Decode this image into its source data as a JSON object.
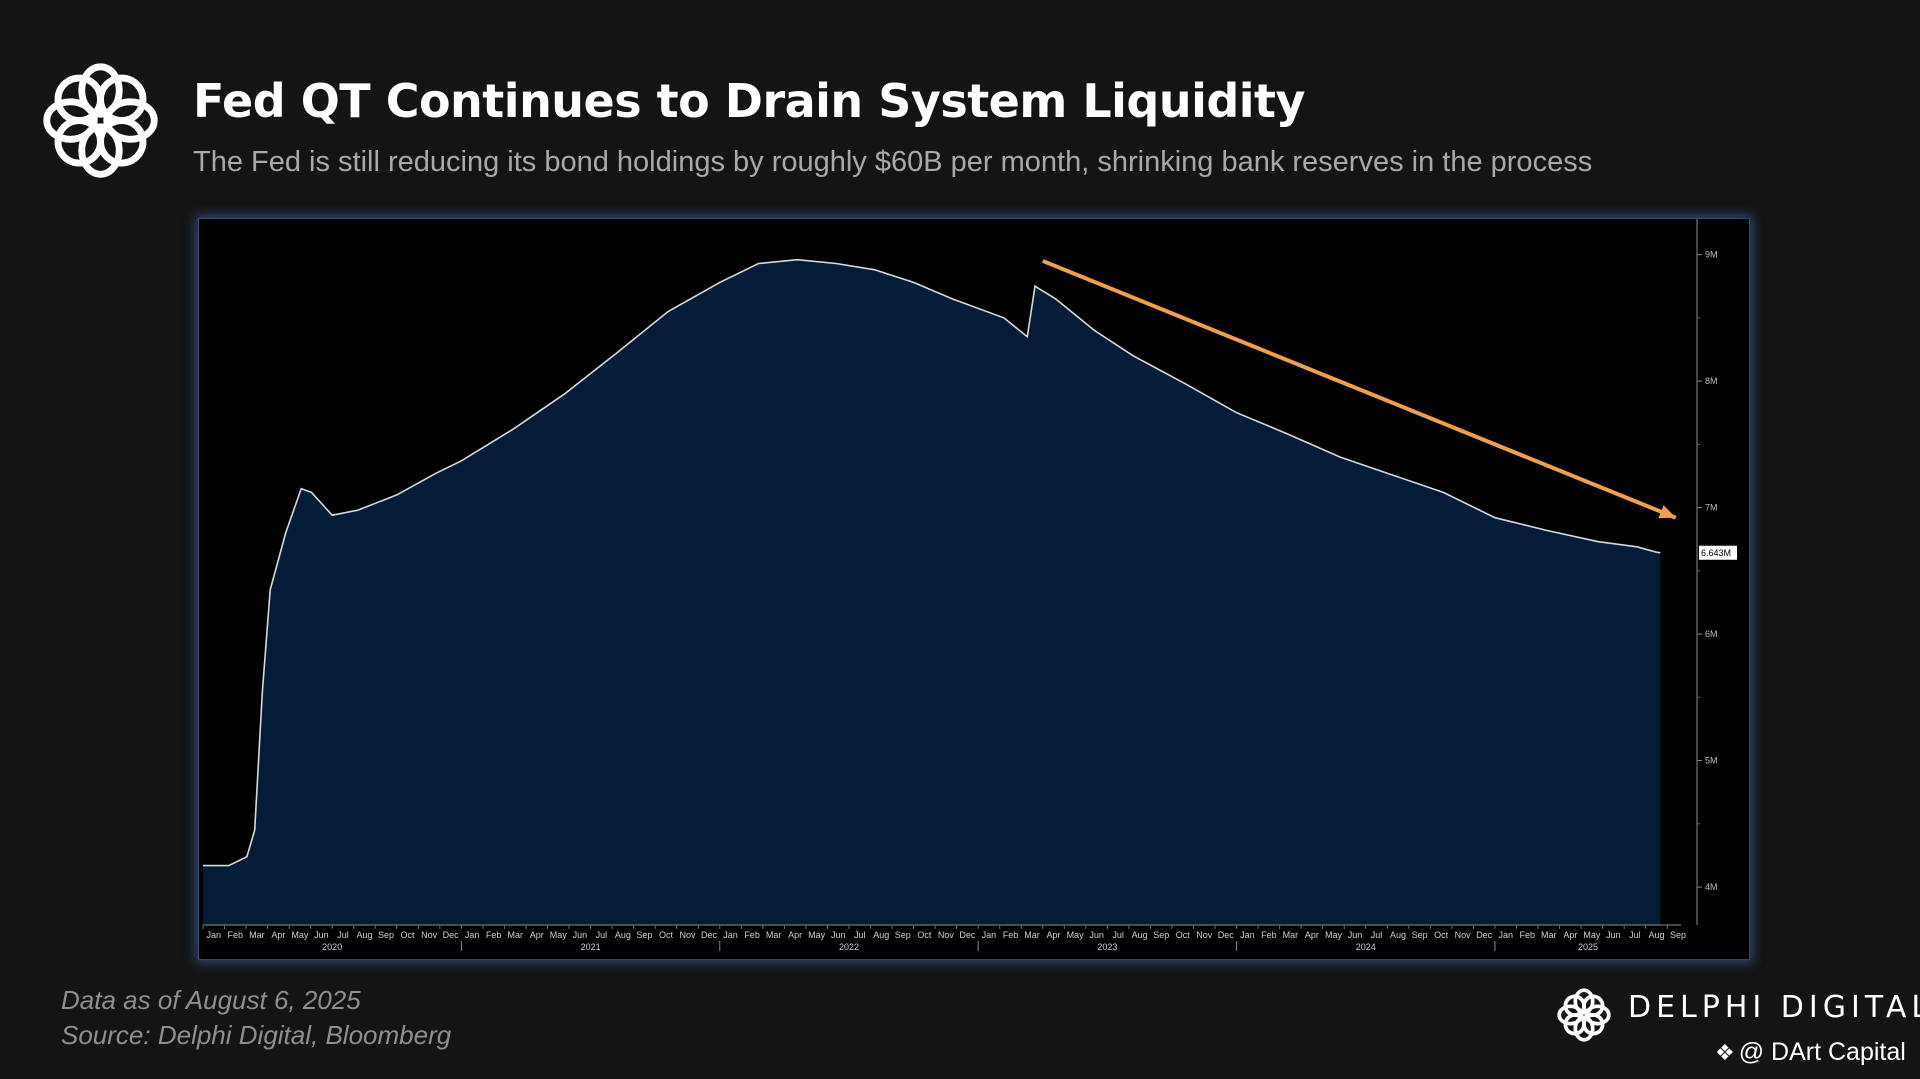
{
  "header": {
    "title": "Fed QT Continues to Drain System Liquidity",
    "subtitle": "The Fed is still reducing its bond holdings by roughly $60B per month, shrinking bank reserves in the process"
  },
  "footer": {
    "data_note": "Data as of August 6, 2025",
    "source": "Source: Delphi Digital, Bloomberg",
    "brand": "DELPHI DIGITAL",
    "watermark": "@ DArt Capital"
  },
  "colors": {
    "background": "#141414",
    "area_fill": "#051c38",
    "line": "#d9d9d9",
    "trend_arrow": "#f0a04a"
  },
  "chart_data": {
    "type": "area",
    "title": "",
    "xlabel": "",
    "ylabel": "",
    "ylim": [
      3.7,
      9.25
    ],
    "y_ticks": [
      4,
      5,
      6,
      7,
      8,
      9
    ],
    "y_tick_labels": [
      "4M",
      "5M",
      "6M",
      "7M",
      "8M",
      "9M"
    ],
    "x_range": [
      2020.0,
      2025.72
    ],
    "x_month_labels": [
      "Jan",
      "Feb",
      "Mar",
      "Apr",
      "May",
      "Jun",
      "Jul",
      "Aug",
      "Sep",
      "Oct",
      "Nov",
      "Dec"
    ],
    "x_year_labels": [
      "2020",
      "2021",
      "2022",
      "2023",
      "2024",
      "2025"
    ],
    "last_value_label": "6.643M",
    "series": [
      {
        "values_in_millions": [
          [
            2020.0,
            4.17
          ],
          [
            2020.1,
            4.17
          ],
          [
            2020.17,
            4.24
          ],
          [
            2020.2,
            4.45
          ],
          [
            2020.23,
            5.55
          ],
          [
            2020.26,
            6.35
          ],
          [
            2020.32,
            6.8
          ],
          [
            2020.38,
            7.15
          ],
          [
            2020.42,
            7.12
          ],
          [
            2020.5,
            6.94
          ],
          [
            2020.6,
            6.98
          ],
          [
            2020.75,
            7.1
          ],
          [
            2020.9,
            7.27
          ],
          [
            2021.0,
            7.37
          ],
          [
            2021.2,
            7.62
          ],
          [
            2021.4,
            7.9
          ],
          [
            2021.6,
            8.22
          ],
          [
            2021.8,
            8.55
          ],
          [
            2022.0,
            8.78
          ],
          [
            2022.15,
            8.93
          ],
          [
            2022.3,
            8.96
          ],
          [
            2022.45,
            8.93
          ],
          [
            2022.6,
            8.88
          ],
          [
            2022.75,
            8.78
          ],
          [
            2022.9,
            8.65
          ],
          [
            2023.1,
            8.5
          ],
          [
            2023.19,
            8.35
          ],
          [
            2023.22,
            8.75
          ],
          [
            2023.3,
            8.65
          ],
          [
            2023.45,
            8.4
          ],
          [
            2023.6,
            8.2
          ],
          [
            2023.8,
            7.98
          ],
          [
            2024.0,
            7.75
          ],
          [
            2024.2,
            7.58
          ],
          [
            2024.4,
            7.4
          ],
          [
            2024.6,
            7.26
          ],
          [
            2024.8,
            7.12
          ],
          [
            2025.0,
            6.92
          ],
          [
            2025.2,
            6.82
          ],
          [
            2025.4,
            6.73
          ],
          [
            2025.55,
            6.69
          ],
          [
            2025.62,
            6.65
          ],
          [
            2025.64,
            6.643
          ]
        ]
      }
    ],
    "trend_arrow": {
      "from": [
        2023.25,
        8.95
      ],
      "to": [
        2025.7,
        6.92
      ]
    }
  }
}
